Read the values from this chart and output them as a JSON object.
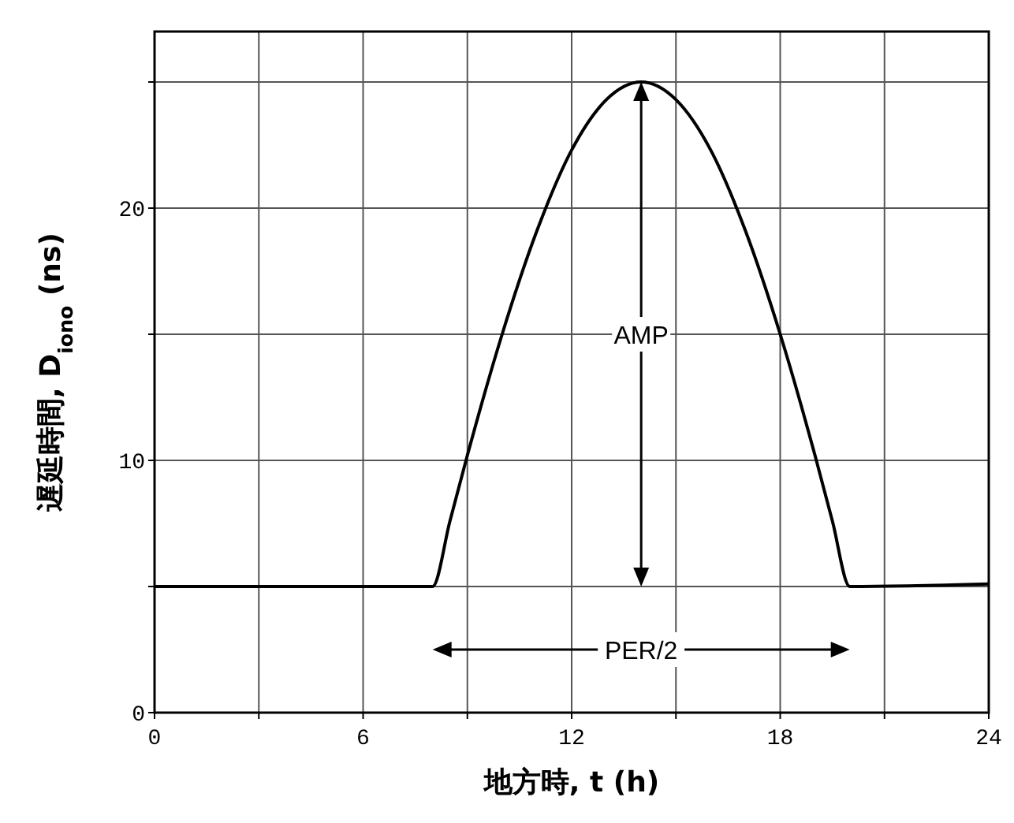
{
  "chart_data": {
    "type": "line",
    "xlabel": "地方時, t (h)",
    "ylabel": "遅延時間, D$_{iono}$ (ns)",
    "xlim": [
      0,
      24
    ],
    "xticks": [
      0,
      {
        "value": 3,
        "label": null
      },
      6,
      {
        "value": 9,
        "label": null
      },
      12,
      {
        "value": 15,
        "label": null
      },
      18,
      {
        "value": 21,
        "label": null
      },
      24
    ],
    "ylim": [
      0,
      27
    ],
    "yticks": [
      0,
      {
        "value": 5,
        "label": null
      },
      10,
      {
        "value": 15,
        "label": null
      },
      20,
      {
        "value": 25,
        "label": null
      }
    ],
    "grid": true,
    "marker": "none",
    "line_style": "solid",
    "series": [
      {
        "color": "#000000",
        "x": [
          0,
          8,
          8.5,
          9,
          10,
          11,
          12,
          13,
          14,
          15,
          16,
          17,
          18,
          19,
          19.5,
          20,
          24
        ],
        "values": [
          5,
          5,
          7.6,
          10.2,
          15,
          19.1,
          22.3,
          24.3,
          25,
          24.3,
          22.3,
          19.1,
          15,
          10.2,
          7.6,
          5,
          5.1
        ]
      }
    ],
    "annotations": [
      {
        "text": "AMP",
        "x": 14,
        "y": 15
      },
      "PER/2"
    ]
  }
}
